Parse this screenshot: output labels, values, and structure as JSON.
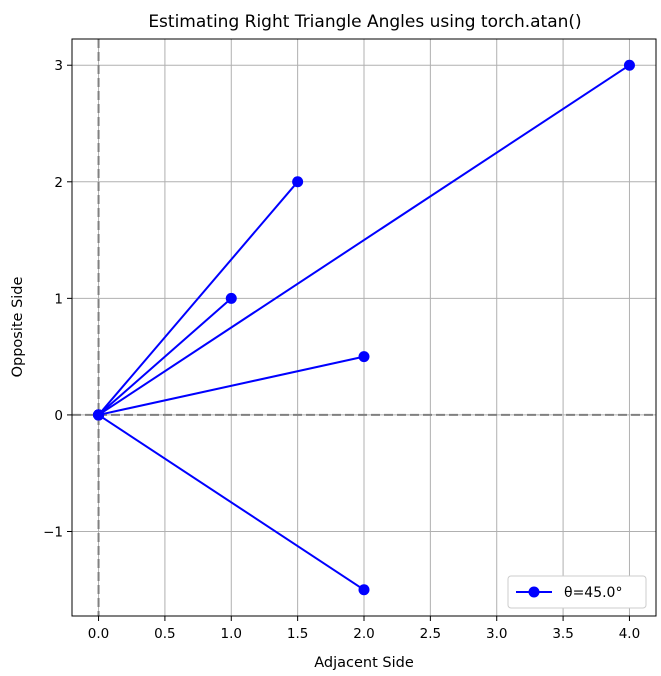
{
  "chart_data": {
    "type": "line",
    "title": "Estimating Right Triangle Angles using torch.atan()",
    "xlabel": "Adjacent Side",
    "ylabel": "Opposite Side",
    "xlim": [
      -0.2,
      4.2
    ],
    "ylim": [
      -1.725,
      3.225
    ],
    "x_ticks": [
      0.0,
      0.5,
      1.0,
      1.5,
      2.0,
      2.5,
      3.0,
      3.5,
      4.0
    ],
    "x_tick_labels": [
      "0.0",
      "0.5",
      "1.0",
      "1.5",
      "2.0",
      "2.5",
      "3.0",
      "3.5",
      "4.0"
    ],
    "y_ticks": [
      -1,
      0,
      1,
      2,
      3
    ],
    "y_tick_labels": [
      "−1",
      "0",
      "1",
      "2",
      "3"
    ],
    "grid": true,
    "reference_lines": {
      "x": 0,
      "y": 0,
      "style": "dashed",
      "color": "#808080"
    },
    "series_color": "#0000ff",
    "series": [
      {
        "name": "θ=45.0°",
        "points": [
          [
            0,
            0
          ],
          [
            1,
            1
          ]
        ]
      },
      {
        "points": [
          [
            0,
            0
          ],
          [
            2,
            0.5
          ]
        ]
      },
      {
        "points": [
          [
            0,
            0
          ],
          [
            1.5,
            2
          ]
        ]
      },
      {
        "points": [
          [
            0,
            0
          ],
          [
            2,
            -1.5
          ]
        ]
      },
      {
        "points": [
          [
            0,
            0
          ],
          [
            4,
            3
          ]
        ]
      }
    ],
    "legend": {
      "position": "lower-right",
      "entries": [
        "θ=45.0°"
      ]
    }
  }
}
